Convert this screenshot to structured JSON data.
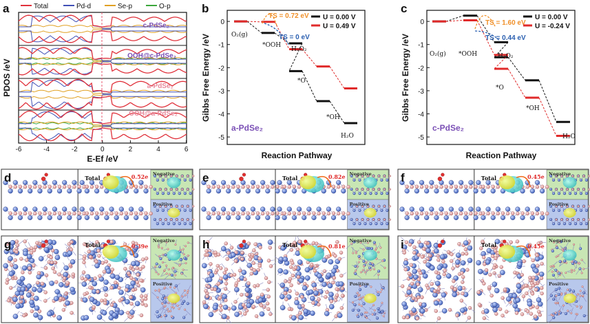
{
  "panels": {
    "a": {
      "label": "a",
      "legend": [
        {
          "name": "Total",
          "color": "#e0303a"
        },
        {
          "name": "Pd-d",
          "color": "#3f4fb5"
        },
        {
          "name": "Se-p",
          "color": "#e0a020"
        },
        {
          "name": "O-p",
          "color": "#3aa63a"
        }
      ],
      "sublabels": [
        "c-PdSe₂",
        "OOH@c-PdSe₂",
        "a-PdSe₂",
        "OOH@a-PdSe₂"
      ],
      "ylabel": "PDOS /eV",
      "xlabel": "E-Ef /eV",
      "xticks": [
        "-6",
        "-4",
        "-2",
        "0",
        "2",
        "4",
        "6"
      ]
    },
    "b": {
      "label": "b",
      "material": "a-PdSe₂",
      "ylabel": "Gibbs Free Energy /eV",
      "xlabel": "Reaction Pathway",
      "yticks": [
        "0",
        "-1",
        "-2",
        "-3",
        "-4",
        "-5"
      ],
      "legend": [
        {
          "name": "U = 0.00 V",
          "color": "#111111"
        },
        {
          "name": "U = 0.49 V",
          "color": "#e02a2a"
        }
      ],
      "ts_labels": [
        {
          "text": "TS = 0.72 eV",
          "color": "#f0902a"
        },
        {
          "text": "TS = 0 eV",
          "color": "#2a5fb0"
        }
      ],
      "species": [
        "O₂(g)",
        "*OOH",
        "H₂O₂",
        "*O",
        "*OH",
        "H₂O"
      ]
    },
    "c": {
      "label": "c",
      "material": "c-PdSe₂",
      "ylabel": "Gibbs Free Energy /eV",
      "xlabel": "Reaction Pathway",
      "yticks": [
        "0",
        "-1",
        "-2",
        "-3",
        "-4",
        "-5"
      ],
      "legend": [
        {
          "name": "U = 0.00 V",
          "color": "#111111"
        },
        {
          "name": "U = -0.24 V",
          "color": "#e02a2a"
        }
      ],
      "ts_labels": [
        {
          "text": "TS = 1.60 eV",
          "color": "#f0902a"
        },
        {
          "text": "TS = 0.44 eV",
          "color": "#2a5fb0"
        }
      ],
      "species": [
        "O₂(g)",
        "*OOH",
        "H₂O₂",
        "*O",
        "*OH",
        "H₂O"
      ]
    },
    "structures": [
      {
        "label": "d",
        "charge": "0.52e"
      },
      {
        "label": "e",
        "charge": "0.82e"
      },
      {
        "label": "f",
        "charge": "0.45e"
      },
      {
        "label": "g",
        "charge": "0.39e"
      },
      {
        "label": "h",
        "charge": "0.81e"
      },
      {
        "label": "i",
        "charge": "0.45e"
      }
    ],
    "structure_text": {
      "total": "Total",
      "negative": "Negative",
      "positive": "Positive"
    }
  },
  "chart_data": [
    {
      "type": "line",
      "panel": "b",
      "ylim": [
        -5,
        0.5
      ],
      "series": [
        {
          "name": "U = 0.00 V",
          "color": "#111111",
          "steps": [
            {
              "x": 0,
              "y": 0
            },
            {
              "x": 1,
              "y": -0.5
            },
            {
              "x": 2,
              "y": -0.95
            },
            {
              "x": 2,
              "y": -2.15
            },
            {
              "x": 3,
              "y": -3.45
            },
            {
              "x": 4,
              "y": -4.4
            }
          ]
        },
        {
          "name": "U = 0.49 V",
          "color": "#e02a2a",
          "steps": [
            {
              "x": 0,
              "y": 0
            },
            {
              "x": 1,
              "y": -0.02
            },
            {
              "x": 2,
              "y": -1.2
            },
            {
              "x": 3,
              "y": -1.95
            },
            {
              "x": 4,
              "y": -2.9
            }
          ]
        }
      ]
    },
    {
      "type": "line",
      "panel": "c",
      "ylim": [
        -5,
        0.5
      ],
      "series": [
        {
          "name": "U = 0.00 V",
          "color": "#111111",
          "steps": [
            {
              "x": 0,
              "y": 0
            },
            {
              "x": 1,
              "y": 0.25
            },
            {
              "x": 2,
              "y": -0.9
            },
            {
              "x": 2,
              "y": -1.55
            },
            {
              "x": 3,
              "y": -2.55
            },
            {
              "x": 4,
              "y": -4.35
            }
          ]
        },
        {
          "name": "U = -0.24 V",
          "color": "#e02a2a",
          "steps": [
            {
              "x": 0,
              "y": 0
            },
            {
              "x": 1,
              "y": 0.05
            },
            {
              "x": 2,
              "y": -1.45
            },
            {
              "x": 2,
              "y": -2.05
            },
            {
              "x": 3,
              "y": -3.3
            },
            {
              "x": 4,
              "y": -4.95
            }
          ]
        }
      ]
    }
  ]
}
